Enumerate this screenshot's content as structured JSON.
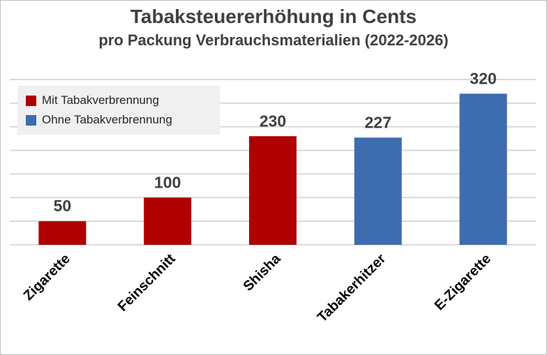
{
  "chart_data": {
    "type": "bar",
    "title": "Tabaksteuererhöhung in Cents",
    "subtitle": "pro Packung Verbrauchsmaterialien (2022-2026)",
    "categories": [
      "Zigarette",
      "Feinschnitt",
      "Shisha",
      "Tabakerhitzer",
      "E-Zigarette"
    ],
    "values": [
      50,
      100,
      230,
      227,
      320
    ],
    "bar_groups": [
      "Mit Tabakverbrennung",
      "Mit Tabakverbrennung",
      "Mit Tabakverbrennung",
      "Ohne Tabakverbrennung",
      "Ohne Tabakverbrennung"
    ],
    "legend": [
      {
        "label": "Mit Tabakverbrennung",
        "color": "#b00000"
      },
      {
        "label": "Ohne Tabakverbrennung",
        "color": "#3e6cb0"
      }
    ],
    "legend_position": "top-left",
    "ylim": [
      0,
      350
    ],
    "grid": true,
    "data_labels": true
  }
}
